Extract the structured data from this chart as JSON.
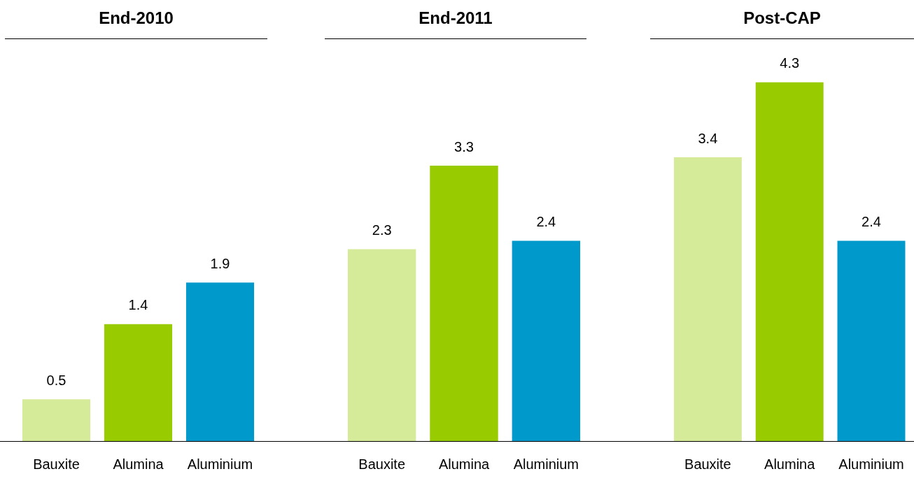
{
  "chart_data": [
    {
      "type": "bar",
      "title": "End-2010",
      "categories": [
        "Bauxite",
        "Alumina",
        "Aluminium"
      ],
      "values": [
        0.5,
        1.4,
        1.9
      ],
      "colors": [
        "#d6eb9a",
        "#99cc00",
        "#0099cc"
      ],
      "data_labels": true
    },
    {
      "type": "bar",
      "title": "End-2011",
      "categories": [
        "Bauxite",
        "Alumina",
        "Aluminium"
      ],
      "values": [
        2.3,
        3.3,
        2.4
      ],
      "colors": [
        "#d6eb9a",
        "#99cc00",
        "#0099cc"
      ],
      "data_labels": true
    },
    {
      "type": "bar",
      "title": "Post-CAP",
      "categories": [
        "Bauxite",
        "Alumina",
        "Aluminium"
      ],
      "values": [
        3.4,
        4.3,
        2.4
      ],
      "colors": [
        "#d6eb9a",
        "#99cc00",
        "#0099cc"
      ],
      "data_labels": true
    }
  ]
}
